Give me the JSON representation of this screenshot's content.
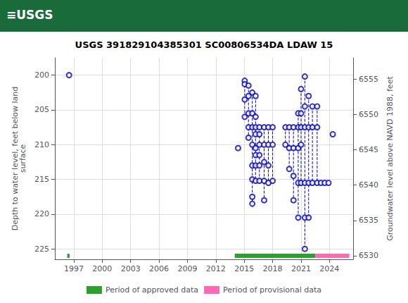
{
  "chart_data": {
    "type": "scatter",
    "header": {
      "text": "≡USGS",
      "color": "#1a6b3a"
    },
    "title": "USGS 391829104385301 SC00806534DA LDAW 15",
    "ylabel": "Depth to water level, feet below land\nsurface",
    "y2label": "Groundwater level above NAVD 1988, feet",
    "xlim": [
      1995.0,
      2026.5
    ],
    "xticks": [
      1997,
      2000,
      2003,
      2006,
      2009,
      2012,
      2015,
      2018,
      2021,
      2024
    ],
    "ylim": [
      226.5,
      197.5
    ],
    "yticks": [
      200,
      205,
      210,
      215,
      220,
      225
    ],
    "y2lim": [
      6529.5,
      6558.0
    ],
    "y2ticks": [
      6530,
      6535,
      6540,
      6545,
      6550,
      6555
    ],
    "grid": true,
    "legend": "bottom",
    "color": "#0000cc",
    "marker": "open_circle",
    "line_style": "dashed",
    "groups": [
      {
        "x": 1996.5,
        "values": [
          200.0
        ]
      },
      {
        "x": 2014.35,
        "values": [
          210.5
        ]
      },
      {
        "x": 2015.05,
        "values": [
          200.8,
          201.3,
          203.5,
          206.0
        ]
      },
      {
        "x": 2015.45,
        "values": [
          201.5,
          203.0,
          205.5,
          207.5,
          209.0
        ]
      },
      {
        "x": 2015.85,
        "values": [
          202.5,
          205.5,
          207.5,
          210.0,
          213.0,
          215.0,
          217.5,
          218.5
        ]
      },
      {
        "x": 2016.2,
        "values": [
          203.0,
          206.0,
          207.5,
          208.5,
          210.5,
          211.5,
          213.0,
          215.2
        ]
      },
      {
        "x": 2016.6,
        "values": [
          207.5,
          208.5,
          210.0,
          211.5,
          213.0,
          215.2
        ]
      },
      {
        "x": 2017.1,
        "values": [
          207.5,
          210.0,
          212.5,
          215.2,
          218.0
        ]
      },
      {
        "x": 2017.55,
        "values": [
          207.5,
          210.0,
          213.0,
          215.5
        ]
      },
      {
        "x": 2018.0,
        "values": [
          207.5,
          210.0,
          215.2
        ]
      },
      {
        "x": 2019.35,
        "values": [
          207.5,
          210.0
        ]
      },
      {
        "x": 2019.75,
        "values": [
          207.5,
          210.5,
          213.5
        ]
      },
      {
        "x": 2020.2,
        "values": [
          207.5,
          210.5,
          214.5,
          218.0
        ]
      },
      {
        "x": 2020.7,
        "values": [
          205.5,
          207.5,
          210.5,
          215.5,
          220.5
        ]
      },
      {
        "x": 2021.0,
        "values": [
          202.0,
          205.5,
          207.5,
          210.0,
          215.5
        ]
      },
      {
        "x": 2021.4,
        "values": [
          200.2,
          204.5,
          207.5,
          215.5,
          220.5,
          225.0
        ]
      },
      {
        "x": 2021.8,
        "values": [
          203.0,
          207.5,
          215.5,
          220.5
        ]
      },
      {
        "x": 2022.2,
        "values": [
          204.5,
          207.5,
          215.5
        ]
      },
      {
        "x": 2022.7,
        "values": [
          204.5,
          207.5,
          215.5
        ]
      },
      {
        "x": 2023.1,
        "values": [
          215.5
        ]
      },
      {
        "x": 2023.5,
        "values": [
          215.5
        ]
      },
      {
        "x": 2023.9,
        "values": [
          215.5
        ]
      },
      {
        "x": 2024.35,
        "values": [
          208.5
        ]
      }
    ],
    "periods": [
      {
        "name": "Period of approved data",
        "color": "#2ca02c",
        "segments": [
          [
            1996.3,
            1996.55
          ],
          [
            2014.0,
            2022.5
          ]
        ]
      },
      {
        "name": "Period of provisional data",
        "color": "#ff69b4",
        "segments": [
          [
            2022.5,
            2026.1
          ]
        ]
      }
    ],
    "bar_y": 226.0,
    "bar_height": 0.6
  }
}
